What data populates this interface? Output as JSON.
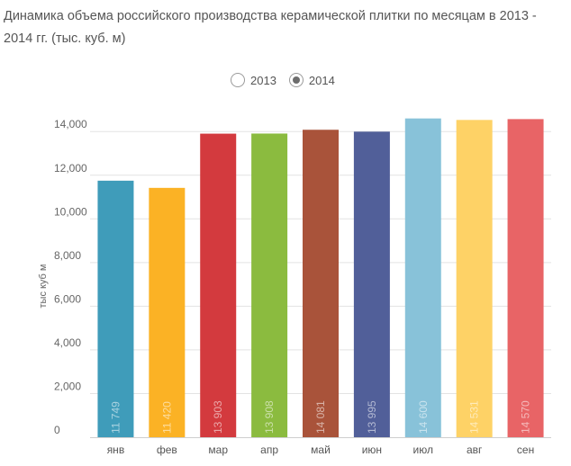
{
  "title": "Динамика объема российского производства керамической плитки по месяцам в 2013 - 2014 гг. (тыс. куб. м)",
  "legend": {
    "items": [
      {
        "label": "2013",
        "selected": false
      },
      {
        "label": "2014",
        "selected": true
      }
    ]
  },
  "chart_data": {
    "type": "bar",
    "title": "Динамика объема российского производства керамической плитки по месяцам в 2013 - 2014 гг. (тыс. куб. м)",
    "xlabel": "",
    "ylabel": "тыс куб м",
    "ylim": [
      0,
      15000
    ],
    "yticks": [
      0,
      2000,
      4000,
      6000,
      8000,
      10000,
      12000,
      14000
    ],
    "ytick_labels": [
      "0",
      "2,000",
      "4,000",
      "6,000",
      "8,000",
      "10,000",
      "12,000",
      "14,000"
    ],
    "grid": true,
    "categories": [
      "янв",
      "фев",
      "мар",
      "апр",
      "май",
      "июн",
      "июл",
      "авг",
      "сен"
    ],
    "values": [
      11749,
      11420,
      13903,
      13908,
      14081,
      13995,
      14600,
      14531,
      14570
    ],
    "value_labels": [
      "11 749",
      "11 420",
      "13 903",
      "13 908",
      "14 081",
      "13 995",
      "14 600",
      "14 531",
      "14 570"
    ],
    "colors": [
      "#3f9cba",
      "#fbb225",
      "#d33a3e",
      "#8bbb3f",
      "#a9533a",
      "#515f99",
      "#88c2d9",
      "#fed266",
      "#e86466"
    ]
  }
}
